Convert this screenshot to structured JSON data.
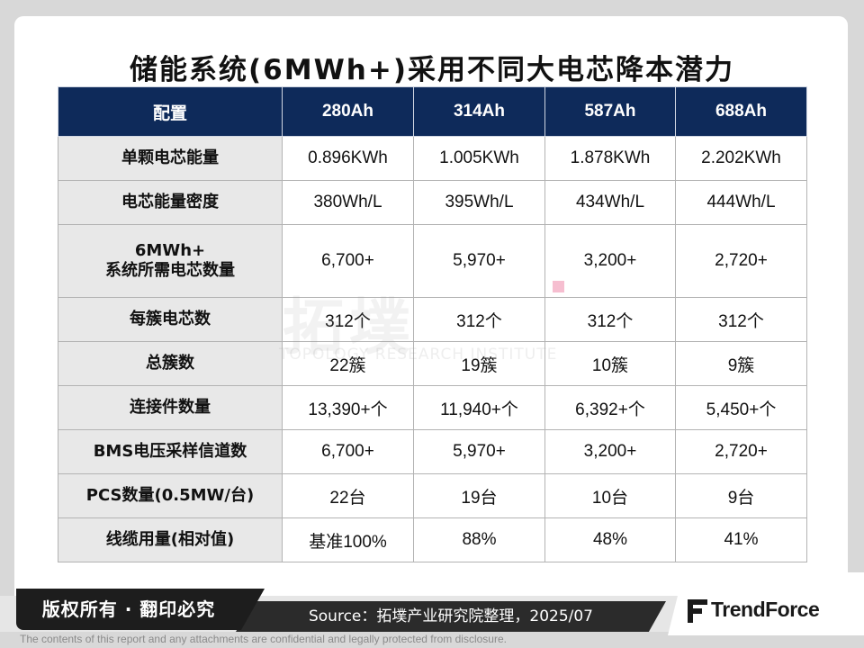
{
  "title": "储能系统(6MWh+)采用不同大电芯降本潜力",
  "watermark": {
    "main": "拓墣",
    "subtitle": "TOPOLOGY RESEARCH INSTITUTE"
  },
  "table": {
    "headers": [
      "配置",
      "280Ah",
      "314Ah",
      "587Ah",
      "688Ah"
    ],
    "rows": [
      {
        "label": [
          "单颗电芯能量"
        ],
        "values": [
          "0.896KWh",
          "1.005KWh",
          "1.878KWh",
          "2.202KWh"
        ]
      },
      {
        "label": [
          "电芯能量密度"
        ],
        "values": [
          "380Wh/L",
          "395Wh/L",
          "434Wh/L",
          "444Wh/L"
        ]
      },
      {
        "label": [
          "6MWh+",
          "系统所需电芯数量"
        ],
        "values": [
          "6,700+",
          "5,970+",
          "3,200+",
          "2,720+"
        ]
      },
      {
        "label": [
          "每簇电芯数"
        ],
        "values": [
          "312个",
          "312个",
          "312个",
          "312个"
        ]
      },
      {
        "label": [
          "总簇数"
        ],
        "values": [
          "22簇",
          "19簇",
          "10簇",
          "9簇"
        ]
      },
      {
        "label": [
          "连接件数量"
        ],
        "values": [
          "13,390+个",
          "11,940+个",
          "6,392+个",
          "5,450+个"
        ]
      },
      {
        "label": [
          "BMS电压采样信道数"
        ],
        "values": [
          "6,700+",
          "5,970+",
          "3,200+",
          "2,720+"
        ]
      },
      {
        "label": [
          "PCS数量(0.5MW/台)"
        ],
        "values": [
          "22台",
          "19台",
          "10台",
          "9台"
        ]
      },
      {
        "label": [
          "线缆用量(相对值)"
        ],
        "values": [
          "基准100%",
          "88%",
          "48%",
          "41%"
        ]
      }
    ]
  },
  "footer": {
    "copyright": "版权所有 · 翻印必究",
    "source": "Source：拓墣产业研究院整理，2025/07",
    "logo": "TrendForce",
    "disclaimer": "The contents of this report and any attachments are confidential and legally protected from disclosure."
  }
}
